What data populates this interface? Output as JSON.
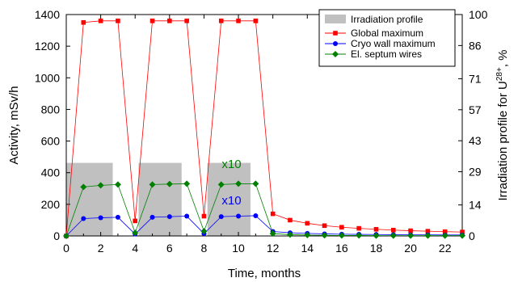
{
  "chart_data": {
    "type": "line",
    "title": "",
    "xlabel": "Time, months",
    "ylabel_left": "Activity, mSv/h",
    "ylabel_right_prefix": "Irradiation profile for U",
    "ylabel_right_sup": "28+",
    "ylabel_right_suffix": ", %",
    "xlim": [
      0,
      23
    ],
    "ylim_left": [
      0,
      1400
    ],
    "ylim_right": [
      0,
      100
    ],
    "x_ticks": [
      0,
      2,
      4,
      6,
      8,
      10,
      12,
      14,
      16,
      18,
      20,
      22
    ],
    "y_left_ticks": [
      0,
      200,
      400,
      600,
      800,
      1000,
      1200,
      1400
    ],
    "y_right_ticks": [
      0,
      14,
      29,
      43,
      57,
      71,
      86,
      100
    ],
    "grid": false,
    "legend_position": "top-right",
    "irradiation_profile": {
      "name": "Irradiation profile",
      "color": "#c0c0c0",
      "on_percent": 33,
      "periods": [
        [
          0,
          2.7
        ],
        [
          4.2,
          6.7
        ],
        [
          8.2,
          10.7
        ]
      ]
    },
    "series": [
      {
        "name": "Global maximum",
        "color": "#ff0000",
        "marker": "square",
        "x": [
          0,
          1,
          2,
          3,
          4,
          5,
          6,
          7,
          8,
          9,
          10,
          11,
          12,
          13,
          14,
          15,
          16,
          17,
          18,
          19,
          20,
          21,
          22,
          23
        ],
        "y": [
          0,
          1350,
          1360,
          1360,
          95,
          1360,
          1360,
          1360,
          125,
          1360,
          1360,
          1360,
          140,
          100,
          80,
          65,
          55,
          48,
          42,
          37,
          33,
          30,
          27,
          25
        ]
      },
      {
        "name": "Cryo wall maximum",
        "color": "#0000ff",
        "marker": "circle",
        "x": [
          0,
          1,
          2,
          3,
          4,
          5,
          6,
          7,
          8,
          9,
          10,
          11,
          12,
          13,
          14,
          15,
          16,
          17,
          18,
          19,
          20,
          21,
          22,
          23
        ],
        "y": [
          0,
          110,
          115,
          118,
          12,
          118,
          122,
          125,
          15,
          122,
          125,
          128,
          28,
          20,
          16,
          13,
          11,
          10,
          9,
          8,
          7,
          7,
          6,
          6
        ]
      },
      {
        "name": "El. septum wires",
        "color": "#008000",
        "marker": "diamond",
        "x": [
          0,
          1,
          2,
          3,
          4,
          5,
          6,
          7,
          8,
          9,
          10,
          11,
          12,
          13,
          14,
          15,
          16,
          17,
          18,
          19,
          20,
          21,
          22,
          23
        ],
        "y": [
          0,
          310,
          320,
          325,
          20,
          325,
          328,
          330,
          30,
          325,
          330,
          330,
          15,
          8,
          6,
          4,
          3,
          3,
          2,
          2,
          2,
          2,
          2,
          2
        ]
      }
    ],
    "annotations": [
      {
        "text": "x10",
        "x": 9.6,
        "y": 430,
        "color": "#008000"
      },
      {
        "text": "x10",
        "x": 9.6,
        "y": 200,
        "color": "#0000ff"
      }
    ]
  }
}
